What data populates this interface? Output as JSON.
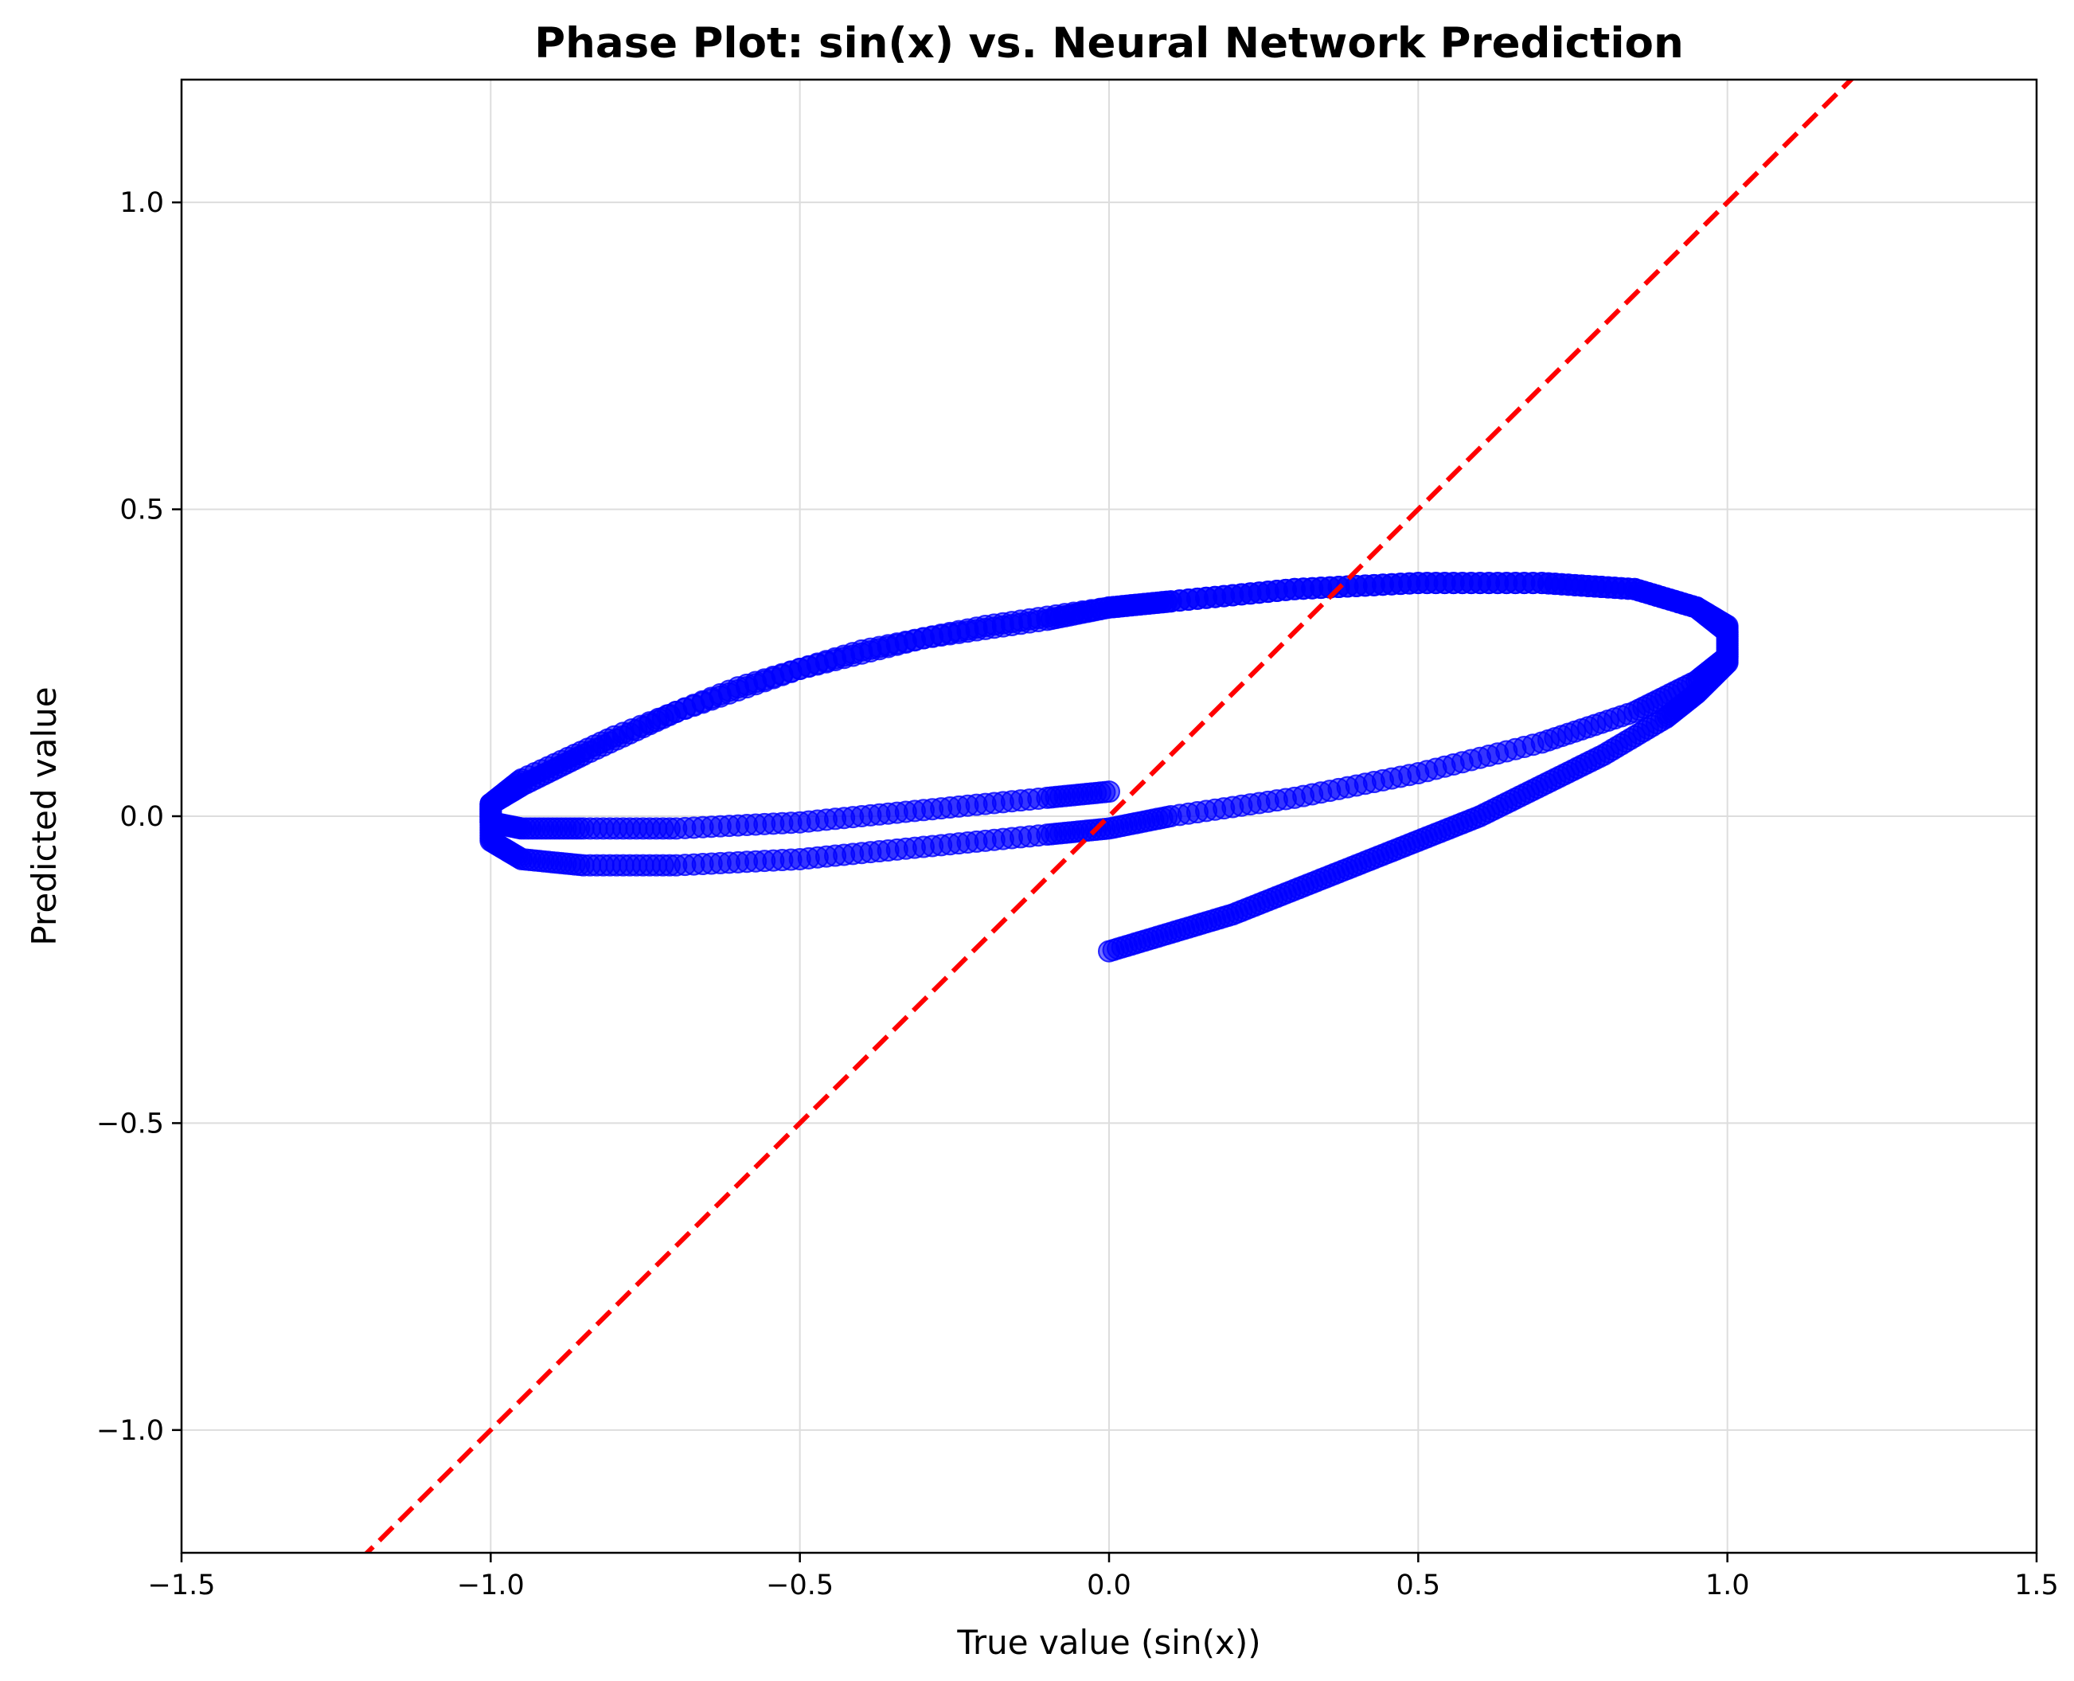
{
  "chart_data": {
    "type": "scatter",
    "title": "Phase Plot: sin(x) vs. Neural Network Prediction",
    "xlabel": "True value (sin(x))",
    "ylabel": "Predicted value",
    "xlim": [
      -1.5,
      1.5
    ],
    "ylim": [
      -1.2,
      1.2
    ],
    "xticks": [
      -1.5,
      -1.0,
      -0.5,
      0.0,
      0.5,
      1.0,
      1.5
    ],
    "yticks": [
      -1.0,
      -0.5,
      0.0,
      0.5,
      1.0
    ],
    "xtick_labels": [
      "−1.5",
      "−1.0",
      "−0.5",
      "0.0",
      "0.5",
      "1.0",
      "1.5"
    ],
    "ytick_labels": [
      "−1.0",
      "−0.5",
      "0.0",
      "0.5",
      "1.0"
    ],
    "grid": true,
    "series": [
      {
        "kind": "scatter",
        "color": "#0000ff",
        "alpha": 0.55,
        "x": [
          0.0,
          0.1,
          0.2,
          0.3,
          0.4,
          0.5,
          0.6,
          0.7,
          0.8,
          0.9,
          0.95,
          1.0,
          1.0,
          0.95,
          0.85,
          0.7,
          0.5,
          0.3,
          0.1,
          0.0,
          -0.1,
          -0.3,
          -0.5,
          -0.7,
          -0.85,
          -0.95,
          -1.0,
          -1.0,
          -0.95,
          -0.85,
          -0.7,
          -0.5,
          -0.3,
          -0.1,
          0.0,
          0.1,
          0.3,
          0.5,
          0.7,
          0.85,
          0.95,
          1.0,
          1.0,
          0.95,
          0.85,
          0.7,
          0.5,
          0.3,
          0.1,
          0.0,
          -0.2,
          -0.4,
          -0.6,
          -0.8,
          -0.95,
          -1.0,
          -1.0,
          -0.95,
          -0.85,
          -0.7,
          -0.5,
          -0.3,
          -0.1,
          0.0
        ],
        "y": [
          -0.22,
          -0.19,
          -0.16,
          -0.12,
          -0.08,
          -0.04,
          0.0,
          0.05,
          0.1,
          0.16,
          0.2,
          0.25,
          0.3,
          0.34,
          0.37,
          0.38,
          0.38,
          0.37,
          0.35,
          0.34,
          0.32,
          0.29,
          0.24,
          0.17,
          0.1,
          0.05,
          0.02,
          -0.04,
          -0.07,
          -0.08,
          -0.08,
          -0.07,
          -0.05,
          -0.03,
          -0.02,
          0.0,
          0.03,
          0.07,
          0.12,
          0.17,
          0.22,
          0.26,
          0.31,
          0.34,
          0.37,
          0.38,
          0.38,
          0.37,
          0.35,
          0.34,
          0.31,
          0.27,
          0.21,
          0.13,
          0.06,
          0.02,
          -0.01,
          -0.02,
          -0.02,
          -0.02,
          -0.01,
          0.01,
          0.03,
          0.04
        ]
      },
      {
        "kind": "line",
        "style": "dashed",
        "color": "#ff0000",
        "x": [
          -1.5,
          1.5
        ],
        "y": [
          -1.5,
          1.5
        ]
      }
    ]
  }
}
